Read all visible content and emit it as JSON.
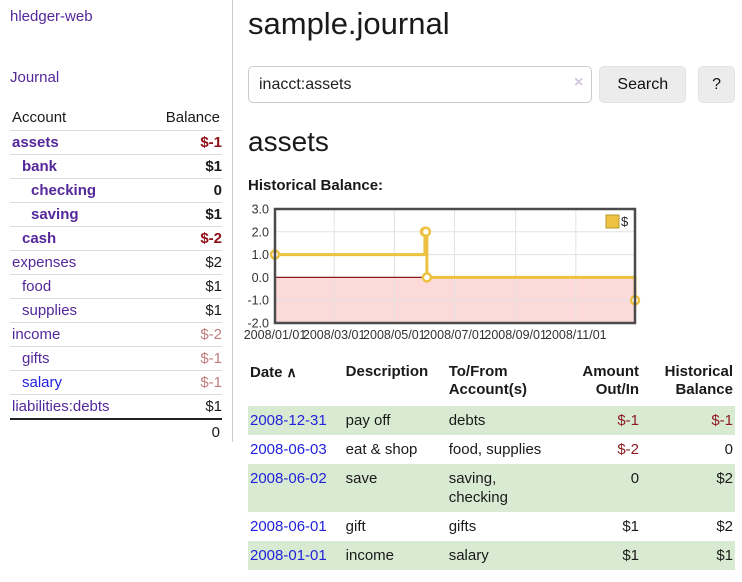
{
  "app": {
    "title": "hledger-web"
  },
  "colors": {
    "link_purple": "#54289a",
    "link_blue": "#2222dd",
    "negative_strong": "#8f0e17",
    "negative_faded": "#c17d7d",
    "row_green": "#d9ead2",
    "series_gold": "#edc240",
    "negative_region_pink": "#fcdada",
    "zero_line_red": "#8b1a1a",
    "grid_gray": "#e2e2e2",
    "chart_border": "#4a4a4a"
  },
  "sidebar": {
    "journal_link": "Journal",
    "account_header": "Account",
    "balance_header": "Balance",
    "rows": [
      {
        "name": "assets",
        "balance": "$-1",
        "level": 0,
        "bold": true,
        "link_color": "purple",
        "balance_style": "negative"
      },
      {
        "name": "bank",
        "balance": "$1",
        "level": 1,
        "bold": true,
        "link_color": "purple",
        "balance_style": "normal"
      },
      {
        "name": "checking",
        "balance": "0",
        "level": 2,
        "bold": true,
        "link_color": "purple",
        "balance_style": "normal"
      },
      {
        "name": "saving",
        "balance": "$1",
        "level": 2,
        "bold": true,
        "link_color": "purple",
        "balance_style": "normal"
      },
      {
        "name": "cash",
        "balance": "$-2",
        "level": 1,
        "bold": true,
        "link_color": "purple",
        "balance_style": "negative"
      },
      {
        "name": "expenses",
        "balance": "$2",
        "level": 0,
        "bold": false,
        "link_color": "purple",
        "balance_style": "normal"
      },
      {
        "name": "food",
        "balance": "$1",
        "level": 1,
        "bold": false,
        "link_color": "purple",
        "balance_style": "normal"
      },
      {
        "name": "supplies",
        "balance": "$1",
        "level": 1,
        "bold": false,
        "link_color": "purple",
        "balance_style": "normal"
      },
      {
        "name": "income",
        "balance": "$-2",
        "level": 0,
        "bold": false,
        "link_color": "purple",
        "balance_style": "negative-faded"
      },
      {
        "name": "gifts",
        "balance": "$-1",
        "level": 1,
        "bold": false,
        "link_color": "purple",
        "balance_style": "negative-faded"
      },
      {
        "name": "salary",
        "balance": "$-1",
        "level": 1,
        "bold": false,
        "link_color": "blue",
        "balance_style": "negative-faded"
      },
      {
        "name": "liabilities:debts",
        "balance": "$1",
        "level": 0,
        "bold": false,
        "link_color": "purple",
        "balance_style": "normal"
      }
    ],
    "total": "0"
  },
  "main": {
    "title": "sample.journal",
    "search": {
      "value": "inacct:assets",
      "clear_icon": "×",
      "button_label": "Search",
      "help_label": "?"
    },
    "account_heading": "assets",
    "chart_label": "Historical Balance:"
  },
  "chart_data": {
    "type": "line",
    "title": "Historical Balance:",
    "step": true,
    "series": [
      {
        "name": "$",
        "points": [
          [
            "2008-01-01",
            1
          ],
          [
            "2008-06-01",
            2
          ],
          [
            "2008-06-02",
            2
          ],
          [
            "2008-06-03",
            0
          ],
          [
            "2008-12-31",
            -1
          ]
        ]
      }
    ],
    "x_range": [
      "2008-01-01",
      "2008-12-31"
    ],
    "x_ticks": [
      "2008/01/01",
      "2008/03/01",
      "2008/05/01",
      "2008/07/01",
      "2008/09/01",
      "2008/11/01"
    ],
    "y_ticks": [
      "3.0",
      "2.0",
      "1.0",
      "0.0",
      "-1.0",
      "-2.0"
    ],
    "ylim": [
      -2,
      3
    ],
    "grid": true,
    "negative_region_below": 0,
    "legend_position": "top-right"
  },
  "register": {
    "headers": [
      {
        "label": "Date",
        "sort_indicator": "∧",
        "align": "left"
      },
      {
        "label": "Description",
        "align": "left"
      },
      {
        "label": "To/From Account(s)",
        "align": "left"
      },
      {
        "label": "Amount Out/In",
        "align": "right"
      },
      {
        "label": "Historical Balance",
        "align": "right"
      }
    ],
    "rows": [
      {
        "date": "2008-12-31",
        "description": "pay off",
        "accounts": "debts",
        "amount": "$-1",
        "amount_negative": true,
        "balance": "$-1",
        "balance_negative": true,
        "shaded": true
      },
      {
        "date": "2008-06-03",
        "description": "eat & shop",
        "accounts": "food, supplies",
        "amount": "$-2",
        "amount_negative": true,
        "balance": "0",
        "balance_negative": false,
        "shaded": false
      },
      {
        "date": "2008-06-02",
        "description": "save",
        "accounts": "saving, checking",
        "amount": "0",
        "amount_negative": false,
        "balance": "$2",
        "balance_negative": false,
        "shaded": true
      },
      {
        "date": "2008-06-01",
        "description": "gift",
        "accounts": "gifts",
        "amount": "$1",
        "amount_negative": false,
        "balance": "$2",
        "balance_negative": false,
        "shaded": false
      },
      {
        "date": "2008-01-01",
        "description": "income",
        "accounts": "salary",
        "amount": "$1",
        "amount_negative": false,
        "balance": "$1",
        "balance_negative": false,
        "shaded": true
      }
    ]
  }
}
